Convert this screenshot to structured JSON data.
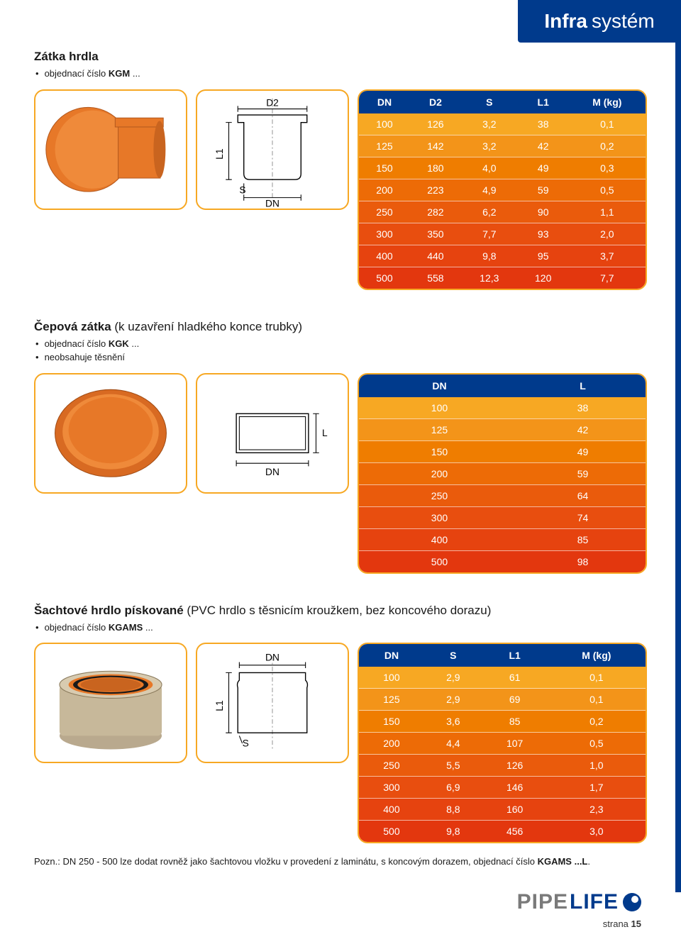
{
  "brand_header": {
    "bold": "Infra",
    "light": "systém"
  },
  "colors": {
    "blue": "#003a8c",
    "orange_border": "#f7a823",
    "row_colors": [
      "#f7a823",
      "#f39419",
      "#ef7d00",
      "#ed6b06",
      "#ea5b0c",
      "#e84e0f",
      "#e6430f",
      "#e3370e"
    ]
  },
  "section1": {
    "title_bold": "Zátka hrdla",
    "bullet1_pre": "objednací číslo ",
    "bullet1_code": "KGM",
    "bullet1_post": " ...",
    "table": {
      "headers": [
        "DN",
        "D2",
        "S",
        "L1",
        "M (kg)"
      ],
      "rows": [
        [
          "100",
          "126",
          "3,2",
          "38",
          "0,1"
        ],
        [
          "125",
          "142",
          "3,2",
          "42",
          "0,2"
        ],
        [
          "150",
          "180",
          "4,0",
          "49",
          "0,3"
        ],
        [
          "200",
          "223",
          "4,9",
          "59",
          "0,5"
        ],
        [
          "250",
          "282",
          "6,2",
          "90",
          "1,1"
        ],
        [
          "300",
          "350",
          "7,7",
          "93",
          "2,0"
        ],
        [
          "400",
          "440",
          "9,8",
          "95",
          "3,7"
        ],
        [
          "500",
          "558",
          "12,3",
          "120",
          "7,7"
        ]
      ]
    },
    "diagram_labels": {
      "D2": "D2",
      "L1": "L1",
      "S": "S",
      "DN": "DN"
    }
  },
  "section2": {
    "title_bold": "Čepová zátka",
    "title_light": " (k uzavření hladkého konce trubky)",
    "bullet1_pre": "objednací číslo ",
    "bullet1_code": "KGK",
    "bullet1_post": " ...",
    "bullet2": "neobsahuje těsnění",
    "table": {
      "headers": [
        "DN",
        "L"
      ],
      "rows": [
        [
          "100",
          "38"
        ],
        [
          "125",
          "42"
        ],
        [
          "150",
          "49"
        ],
        [
          "200",
          "59"
        ],
        [
          "250",
          "64"
        ],
        [
          "300",
          "74"
        ],
        [
          "400",
          "85"
        ],
        [
          "500",
          "98"
        ]
      ]
    },
    "diagram_labels": {
      "L": "L",
      "DN": "DN"
    }
  },
  "section3": {
    "title_bold": "Šachtové hrdlo pískované",
    "title_light": "  (PVC hrdlo s těsnicím kroužkem, bez koncového dorazu)",
    "bullet1_pre": "objednací číslo ",
    "bullet1_code": "KGAMS",
    "bullet1_post": " ...",
    "table": {
      "headers": [
        "DN",
        "S",
        "L1",
        "M (kg)"
      ],
      "rows": [
        [
          "100",
          "2,9",
          "61",
          "0,1"
        ],
        [
          "125",
          "2,9",
          "69",
          "0,1"
        ],
        [
          "150",
          "3,6",
          "85",
          "0,2"
        ],
        [
          "200",
          "4,4",
          "107",
          "0,5"
        ],
        [
          "250",
          "5,5",
          "126",
          "1,0"
        ],
        [
          "300",
          "6,9",
          "146",
          "1,7"
        ],
        [
          "400",
          "8,8",
          "160",
          "2,3"
        ],
        [
          "500",
          "9,8",
          "456",
          "3,0"
        ]
      ]
    },
    "diagram_labels": {
      "L1": "L1",
      "S": "S",
      "DN": "DN"
    }
  },
  "footnote": {
    "pre": "Pozn.: DN 250 - 500 lze dodat rovněž jako šachtovou vložku v provedení z laminátu, s koncovým dorazem, objednací číslo ",
    "code": "KGAMS ...L",
    "post": "."
  },
  "footer": {
    "logo1": "PIPE",
    "logo2": "LIFE",
    "page_label": "strana ",
    "page_num": "15"
  }
}
